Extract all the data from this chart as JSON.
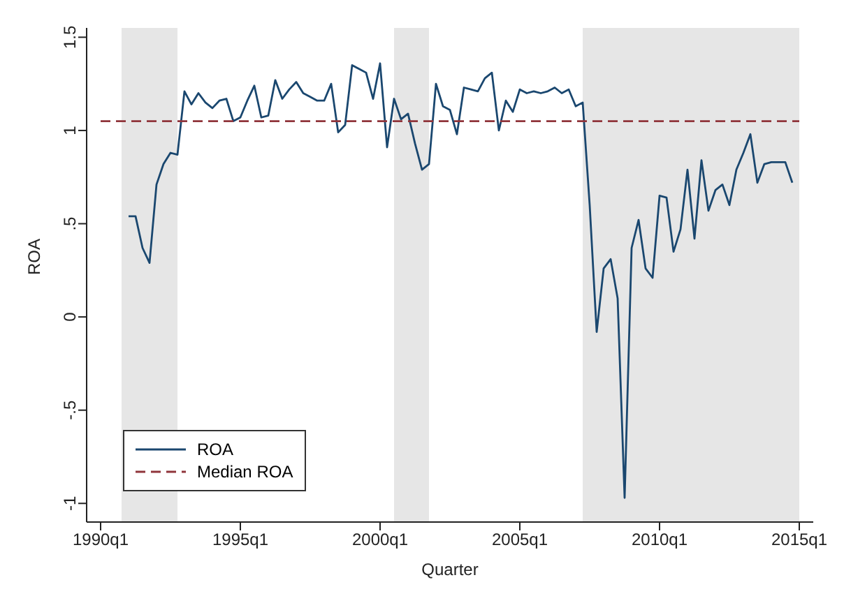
{
  "chart_data": {
    "type": "line",
    "xlabel": "Quarter",
    "ylabel": "ROA",
    "xlim": [
      "1989-07",
      "2015-07"
    ],
    "xticks": [
      {
        "value": "1990-01",
        "label": "1990q1"
      },
      {
        "value": "1995-01",
        "label": "1995q1"
      },
      {
        "value": "2000-01",
        "label": "2000q1"
      },
      {
        "value": "2005-01",
        "label": "2005q1"
      },
      {
        "value": "2010-01",
        "label": "2010q1"
      },
      {
        "value": "2015-01",
        "label": "2015q1"
      }
    ],
    "ylim": [
      -1.1,
      1.55
    ],
    "yticks": [
      -1,
      {
        "value": -0.5,
        "label": "-.5"
      },
      0,
      {
        "value": 0.5,
        "label": ".5"
      },
      1,
      1.5
    ],
    "grid": false,
    "legend": "bottom left",
    "marker": "none",
    "bands": [
      {
        "axis": "x",
        "from": "1990-10",
        "to": "1992-10",
        "color": "#e6e6e6"
      },
      {
        "axis": "x",
        "from": "2000-07",
        "to": "2001-10",
        "color": "#e6e6e6"
      },
      {
        "axis": "x",
        "from": "2007-04",
        "to": "2015-01",
        "color": "#e6e6e6"
      }
    ],
    "series": [
      {
        "name": "ROA",
        "color": "#1a476f",
        "line_style": "solid",
        "x": [
          "1991-01",
          "1991-04",
          "1991-07",
          "1991-10",
          "1992-01",
          "1992-04",
          "1992-07",
          "1992-10",
          "1993-01",
          "1993-04",
          "1993-07",
          "1993-10",
          "1994-01",
          "1994-04",
          "1994-07",
          "1994-10",
          "1995-01",
          "1995-04",
          "1995-07",
          "1995-10",
          "1996-01",
          "1996-04",
          "1996-07",
          "1996-10",
          "1997-01",
          "1997-04",
          "1997-07",
          "1997-10",
          "1998-01",
          "1998-04",
          "1998-07",
          "1998-10",
          "1999-01",
          "1999-04",
          "1999-07",
          "1999-10",
          "2000-01",
          "2000-04",
          "2000-07",
          "2000-10",
          "2001-01",
          "2001-04",
          "2001-07",
          "2001-10",
          "2002-01",
          "2002-04",
          "2002-07",
          "2002-10",
          "2003-01",
          "2003-04",
          "2003-07",
          "2003-10",
          "2004-01",
          "2004-04",
          "2004-07",
          "2004-10",
          "2005-01",
          "2005-04",
          "2005-07",
          "2005-10",
          "2006-01",
          "2006-04",
          "2006-07",
          "2006-10",
          "2007-01",
          "2007-04",
          "2007-07",
          "2007-10",
          "2008-01",
          "2008-04",
          "2008-07",
          "2008-10",
          "2009-01",
          "2009-04",
          "2009-07",
          "2009-10",
          "2010-01",
          "2010-04",
          "2010-07",
          "2010-10",
          "2011-01",
          "2011-04",
          "2011-07",
          "2011-10",
          "2012-01",
          "2012-04",
          "2012-07",
          "2012-10",
          "2013-01",
          "2013-04",
          "2013-07",
          "2013-10",
          "2014-01",
          "2014-04",
          "2014-07",
          "2014-10"
        ],
        "values": [
          0.54,
          0.54,
          0.37,
          0.29,
          0.71,
          0.82,
          0.88,
          0.87,
          1.21,
          1.14,
          1.2,
          1.15,
          1.12,
          1.16,
          1.17,
          1.05,
          1.07,
          1.16,
          1.24,
          1.07,
          1.08,
          1.27,
          1.17,
          1.22,
          1.26,
          1.2,
          1.18,
          1.16,
          1.16,
          1.25,
          0.99,
          1.03,
          1.35,
          1.33,
          1.31,
          1.17,
          1.36,
          0.91,
          1.17,
          1.06,
          1.09,
          0.93,
          0.79,
          0.82,
          1.25,
          1.13,
          1.11,
          0.98,
          1.23,
          1.22,
          1.21,
          1.28,
          1.31,
          1.0,
          1.16,
          1.1,
          1.22,
          1.2,
          1.21,
          1.2,
          1.21,
          1.23,
          1.2,
          1.22,
          1.13,
          1.15,
          0.6,
          -0.08,
          0.26,
          0.31,
          0.1,
          -0.97,
          0.37,
          0.52,
          0.26,
          0.21,
          0.65,
          0.64,
          0.35,
          0.47,
          0.79,
          0.42,
          0.84,
          0.57,
          0.68,
          0.71,
          0.6,
          0.79,
          0.88,
          0.98,
          0.72,
          0.82,
          0.83,
          0.83,
          0.83,
          0.72
        ]
      },
      {
        "name": "Median ROA",
        "color": "#90353b",
        "line_style": "dashed",
        "x": [
          "1990-01",
          "2015-01"
        ],
        "values": [
          1.05,
          1.05
        ]
      }
    ]
  }
}
